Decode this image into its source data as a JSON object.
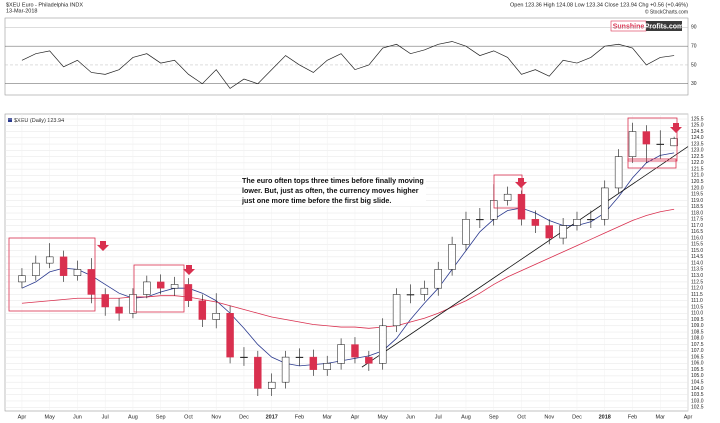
{
  "chart_data": {
    "type": "candlestick",
    "title": "$XEU Euro - Philadelphia INDX",
    "date": "13-Mar-2018",
    "quote": "Open 123.36 High 124.08 Low 123.34 Close 123.94 Chg +0.56 (+0.46%)",
    "credit": "© StockCharts.com",
    "logo": [
      "Sunshine",
      "Profits.com"
    ],
    "legend": "$XEU (Daily) 123.94",
    "annotation": [
      "The euro often tops three times before finally moving",
      "lower. But, just as often, the currency moves higher",
      "just one more time before the first big slide."
    ],
    "categories": [
      "Apr",
      null,
      "May",
      null,
      "Jun",
      null,
      "Jul",
      null,
      "Aug",
      null,
      "Sep",
      null,
      "Oct",
      null,
      "Nov",
      null,
      "Dec",
      null,
      "2017",
      null,
      "Feb",
      null,
      "Mar",
      null,
      "Apr",
      null,
      "May",
      null,
      "Jun",
      null,
      "Jul",
      null,
      "Aug",
      null,
      "Sep",
      null,
      "Oct",
      null,
      "Nov",
      null,
      "Dec",
      null,
      "2018",
      null,
      "Feb",
      null,
      "Mar",
      null,
      "Apr"
    ],
    "open": [
      112.5,
      113.0,
      114.0,
      114.5,
      113.0,
      113.5,
      111.5,
      110.5,
      110.0,
      111.5,
      112.5,
      112.0,
      112.3,
      111.0,
      109.5,
      110.0,
      106.5,
      106.5,
      104.0,
      104.5,
      106.5,
      106.5,
      105.5,
      106.0,
      107.5,
      106.5,
      106.0,
      109.0,
      111.5,
      111.5,
      112.0,
      113.5,
      115.5,
      117.5,
      117.5,
      119.0,
      119.5,
      117.5,
      117.0,
      116.0,
      117.0,
      117.5,
      117.5,
      120.0,
      122.5,
      124.5,
      123.5,
      123.36,
      null
    ],
    "high": [
      113.6,
      114.6,
      115.6,
      115.0,
      114.2,
      114.4,
      112.0,
      111.2,
      112.0,
      113.0,
      113.1,
      112.9,
      112.8,
      111.5,
      111.6,
      110.6,
      107.3,
      107.0,
      105.2,
      107.0,
      107.2,
      107.1,
      106.6,
      108.0,
      108.1,
      107.0,
      109.6,
      112.0,
      112.3,
      112.6,
      114.1,
      116.1,
      118.1,
      118.4,
      120.3,
      120.1,
      119.8,
      118.2,
      117.5,
      117.6,
      118.1,
      118.2,
      120.6,
      123.1,
      125.2,
      125.0,
      124.6,
      124.08,
      null
    ],
    "low": [
      112.0,
      112.6,
      113.6,
      112.5,
      112.6,
      110.8,
      109.8,
      109.4,
      109.6,
      111.2,
      111.5,
      111.4,
      110.5,
      108.9,
      108.8,
      106.0,
      105.8,
      103.4,
      103.4,
      104.0,
      105.8,
      105.0,
      105.0,
      105.5,
      106.0,
      105.4,
      105.5,
      108.5,
      110.8,
      111.0,
      111.4,
      113.0,
      115.0,
      116.8,
      117.0,
      118.6,
      117.0,
      116.4,
      115.5,
      115.5,
      116.6,
      116.8,
      117.0,
      119.6,
      122.0,
      122.0,
      122.3,
      123.34,
      null
    ],
    "close": [
      113.0,
      114.0,
      114.5,
      113.0,
      113.5,
      111.5,
      110.5,
      110.0,
      111.5,
      112.5,
      112.0,
      112.3,
      111.0,
      109.5,
      110.0,
      106.5,
      106.5,
      104.0,
      104.5,
      106.5,
      106.5,
      105.5,
      106.0,
      107.5,
      106.5,
      106.0,
      109.0,
      111.5,
      111.5,
      112.0,
      113.5,
      115.5,
      117.5,
      117.5,
      119.0,
      119.5,
      117.5,
      117.0,
      116.0,
      117.0,
      117.5,
      117.5,
      120.0,
      122.5,
      124.5,
      123.5,
      123.5,
      123.94,
      null
    ],
    "up_color": "#ffffff",
    "down_color": "#d9304f",
    "overlays": [
      {
        "color": "#2b3a8f",
        "values": [
          112.0,
          112.5,
          113.3,
          113.6,
          113.5,
          113.0,
          112.3,
          111.6,
          111.2,
          111.3,
          111.7,
          112.0,
          112.0,
          111.6,
          111.0,
          110.0,
          108.8,
          107.5,
          106.5,
          106.0,
          105.8,
          105.9,
          106.0,
          106.2,
          106.4,
          106.6,
          107.0,
          108.0,
          109.5,
          110.8,
          112.0,
          113.5,
          115.0,
          116.5,
          117.5,
          118.2,
          118.4,
          118.0,
          117.4,
          117.0,
          117.0,
          117.3,
          118.0,
          119.3,
          120.8,
          122.0,
          122.6,
          122.8,
          null
        ]
      },
      {
        "color": "#d9304f",
        "values": [
          110.8,
          110.9,
          111.0,
          111.1,
          111.2,
          111.2,
          111.2,
          111.2,
          111.3,
          111.3,
          111.4,
          111.4,
          111.3,
          111.1,
          110.9,
          110.6,
          110.3,
          110.0,
          109.7,
          109.5,
          109.3,
          109.1,
          109.0,
          108.9,
          108.9,
          108.8,
          108.9,
          109.0,
          109.3,
          109.6,
          110.0,
          110.5,
          111.0,
          111.6,
          112.3,
          112.9,
          113.4,
          113.9,
          114.4,
          114.9,
          115.4,
          115.9,
          116.4,
          116.9,
          117.4,
          117.8,
          118.1,
          118.3,
          null
        ]
      }
    ],
    "trend_line": [
      105.7,
      123.3
    ],
    "ylim": [
      102.2,
      125.9
    ],
    "yticks": [
      102.5,
      {
        "value": 103,
        "label": "103.0"
      },
      103.5,
      {
        "value": 104,
        "label": "104.0"
      },
      104.5,
      {
        "value": 105,
        "label": "105.0"
      },
      105.5,
      {
        "value": 106,
        "label": "106.0"
      },
      106.5,
      {
        "value": 107,
        "label": "107.0"
      },
      107.5,
      {
        "value": 108,
        "label": "108.0"
      },
      108.5,
      {
        "value": 109,
        "label": "109.0"
      },
      109.5,
      {
        "value": 110,
        "label": "110.0"
      },
      110.5,
      {
        "value": 111,
        "label": "111.0"
      },
      111.5,
      {
        "value": 112,
        "label": "112.0"
      },
      112.5,
      {
        "value": 113,
        "label": "113.0"
      },
      113.5,
      {
        "value": 114,
        "label": "114.0"
      },
      114.5,
      {
        "value": 115,
        "label": "115.0"
      },
      115.5,
      {
        "value": 116,
        "label": "116.0"
      },
      116.5,
      {
        "value": 117,
        "label": "117.0"
      },
      117.5,
      {
        "value": 118,
        "label": "118.0"
      },
      118.5,
      {
        "value": 119,
        "label": "119.0"
      },
      119.5,
      {
        "value": 120,
        "label": "120.0"
      },
      120.5,
      {
        "value": 121,
        "label": "121.0"
      },
      121.5,
      {
        "value": 122,
        "label": "122.0"
      },
      122.5,
      {
        "value": 123,
        "label": "123.0"
      },
      123.5,
      {
        "value": 124,
        "label": "124.0"
      },
      124.5,
      {
        "value": 125,
        "label": "125.0"
      },
      125.5
    ],
    "grid": true,
    "rsi": {
      "color": "#222222",
      "ylim": [
        18,
        100
      ],
      "yticks": [
        90,
        70,
        50,
        30
      ],
      "values": [
        55,
        62,
        65,
        48,
        55,
        42,
        40,
        45,
        58,
        62,
        52,
        55,
        40,
        30,
        45,
        25,
        35,
        30,
        45,
        60,
        50,
        42,
        55,
        62,
        45,
        50,
        68,
        72,
        62,
        66,
        72,
        75,
        70,
        60,
        65,
        58,
        40,
        45,
        38,
        55,
        52,
        58,
        70,
        72,
        68,
        50,
        58,
        60,
        null
      ]
    }
  }
}
